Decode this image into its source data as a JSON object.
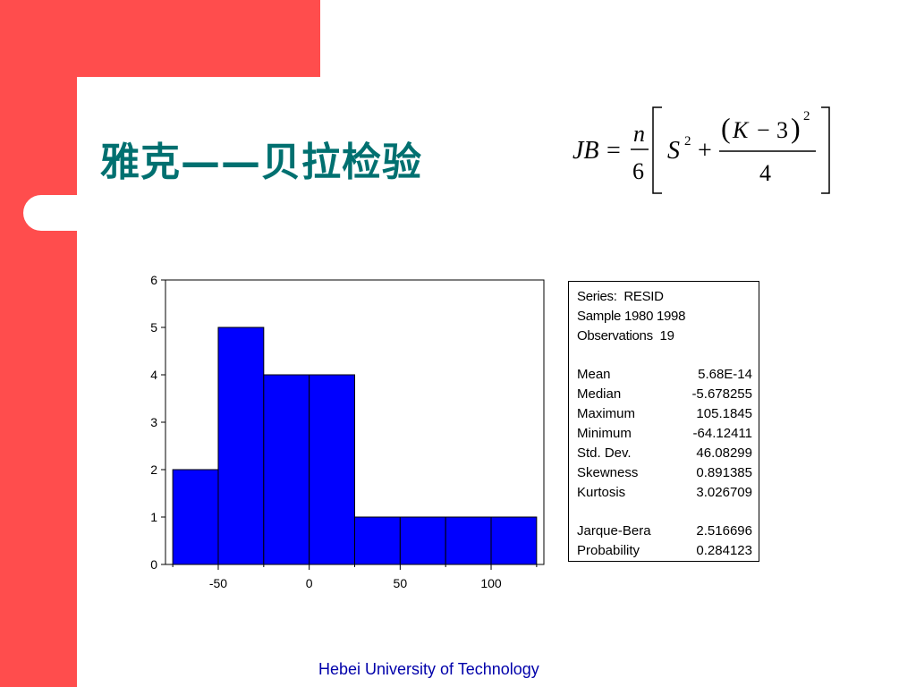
{
  "slide": {
    "title": "雅克——贝拉检验",
    "footer": "Hebei University of Technology",
    "accent_color": "#ff4d4d",
    "title_color": "#007070"
  },
  "formula": {
    "lhs": "JB",
    "eq": "=",
    "n": "n",
    "six": "6",
    "S": "S",
    "exp2": "2",
    "plus": "+",
    "K": "K",
    "minus": "−",
    "three": "3",
    "four": "4"
  },
  "stats": {
    "series_label": "Series:",
    "series_value": "RESID",
    "sample_label": "Sample",
    "sample_value": "1980 1998",
    "obs_label": "Observations",
    "obs_value": "19",
    "rows1": [
      {
        "label": "Mean",
        "value": "5.68E-14"
      },
      {
        "label": "Median",
        "value": "-5.678255"
      },
      {
        "label": "Maximum",
        "value": "105.1845"
      },
      {
        "label": "Minimum",
        "value": "-64.12411"
      },
      {
        "label": "Std. Dev.",
        "value": "46.08299"
      },
      {
        "label": "Skewness",
        "value": "0.891385"
      },
      {
        "label": "Kurtosis",
        "value": "3.026709"
      }
    ],
    "rows2": [
      {
        "label": "Jarque-Bera",
        "value": "2.516696"
      },
      {
        "label": "Probability",
        "value": "0.284123"
      }
    ]
  },
  "chart_data": {
    "type": "bar",
    "bins": [
      {
        "from": -75,
        "to": -50,
        "count": 2
      },
      {
        "from": -50,
        "to": -25,
        "count": 5
      },
      {
        "from": -25,
        "to": 0,
        "count": 4
      },
      {
        "from": 0,
        "to": 25,
        "count": 4
      },
      {
        "from": 25,
        "to": 50,
        "count": 1
      },
      {
        "from": 50,
        "to": 75,
        "count": 1
      },
      {
        "from": 75,
        "to": 100,
        "count": 1
      },
      {
        "from": 100,
        "to": 125,
        "count": 1
      }
    ],
    "xlim": [
      -79,
      129
    ],
    "ylim": [
      0,
      6
    ],
    "x_ticks": [
      -50,
      0,
      50,
      100
    ],
    "y_ticks": [
      0,
      1,
      2,
      3,
      4,
      5,
      6
    ],
    "bar_color": "#0000ff",
    "grid": false,
    "title": "",
    "xlabel": "",
    "ylabel": ""
  }
}
